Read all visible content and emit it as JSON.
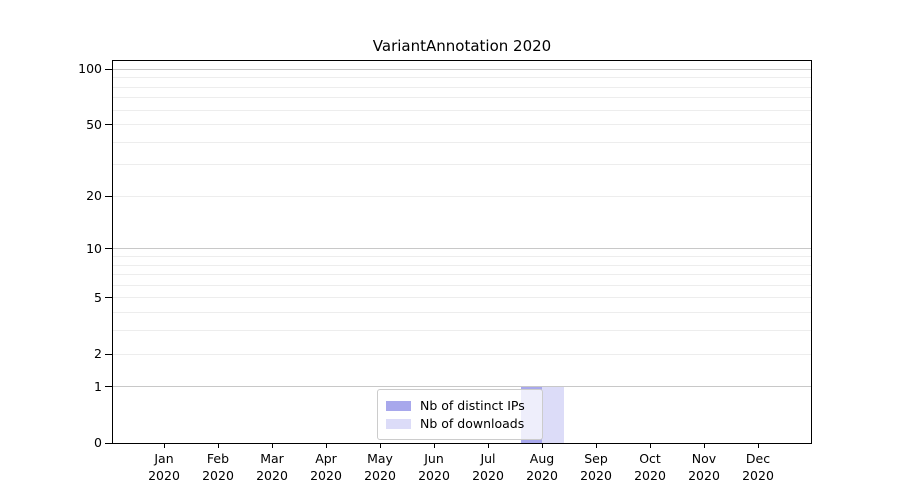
{
  "chart_data": {
    "type": "bar",
    "title": "VariantAnnotation 2020",
    "year_label": "2020",
    "months": [
      "Jan",
      "Feb",
      "Mar",
      "Apr",
      "May",
      "Jun",
      "Jul",
      "Aug",
      "Sep",
      "Oct",
      "Nov",
      "Dec"
    ],
    "series": [
      {
        "name": "Nb of distinct IPs",
        "color": "#a8a8ec",
        "values": [
          0,
          0,
          0,
          0,
          0,
          0,
          0,
          1,
          0,
          0,
          0,
          0
        ]
      },
      {
        "name": "Nb of downloads",
        "color": "#dcdcf8",
        "values": [
          0,
          0,
          0,
          0,
          0,
          0,
          0,
          1,
          0,
          0,
          0,
          0
        ]
      }
    ],
    "y_axis": {
      "tick_values": [
        0,
        1,
        2,
        5,
        10,
        20,
        50,
        100
      ],
      "scale": "log10(value+1)",
      "max": 100
    },
    "grid": {
      "major_values": [
        1,
        10,
        100
      ],
      "minor_values": [
        2,
        3,
        4,
        5,
        6,
        7,
        8,
        9,
        20,
        30,
        40,
        50,
        60,
        70,
        80,
        90
      ],
      "major_color": "#c8c8c8",
      "minor_color": "#ededed"
    },
    "legend_position": "lower center",
    "axis_color": "#000000",
    "background_color": "#ffffff"
  }
}
